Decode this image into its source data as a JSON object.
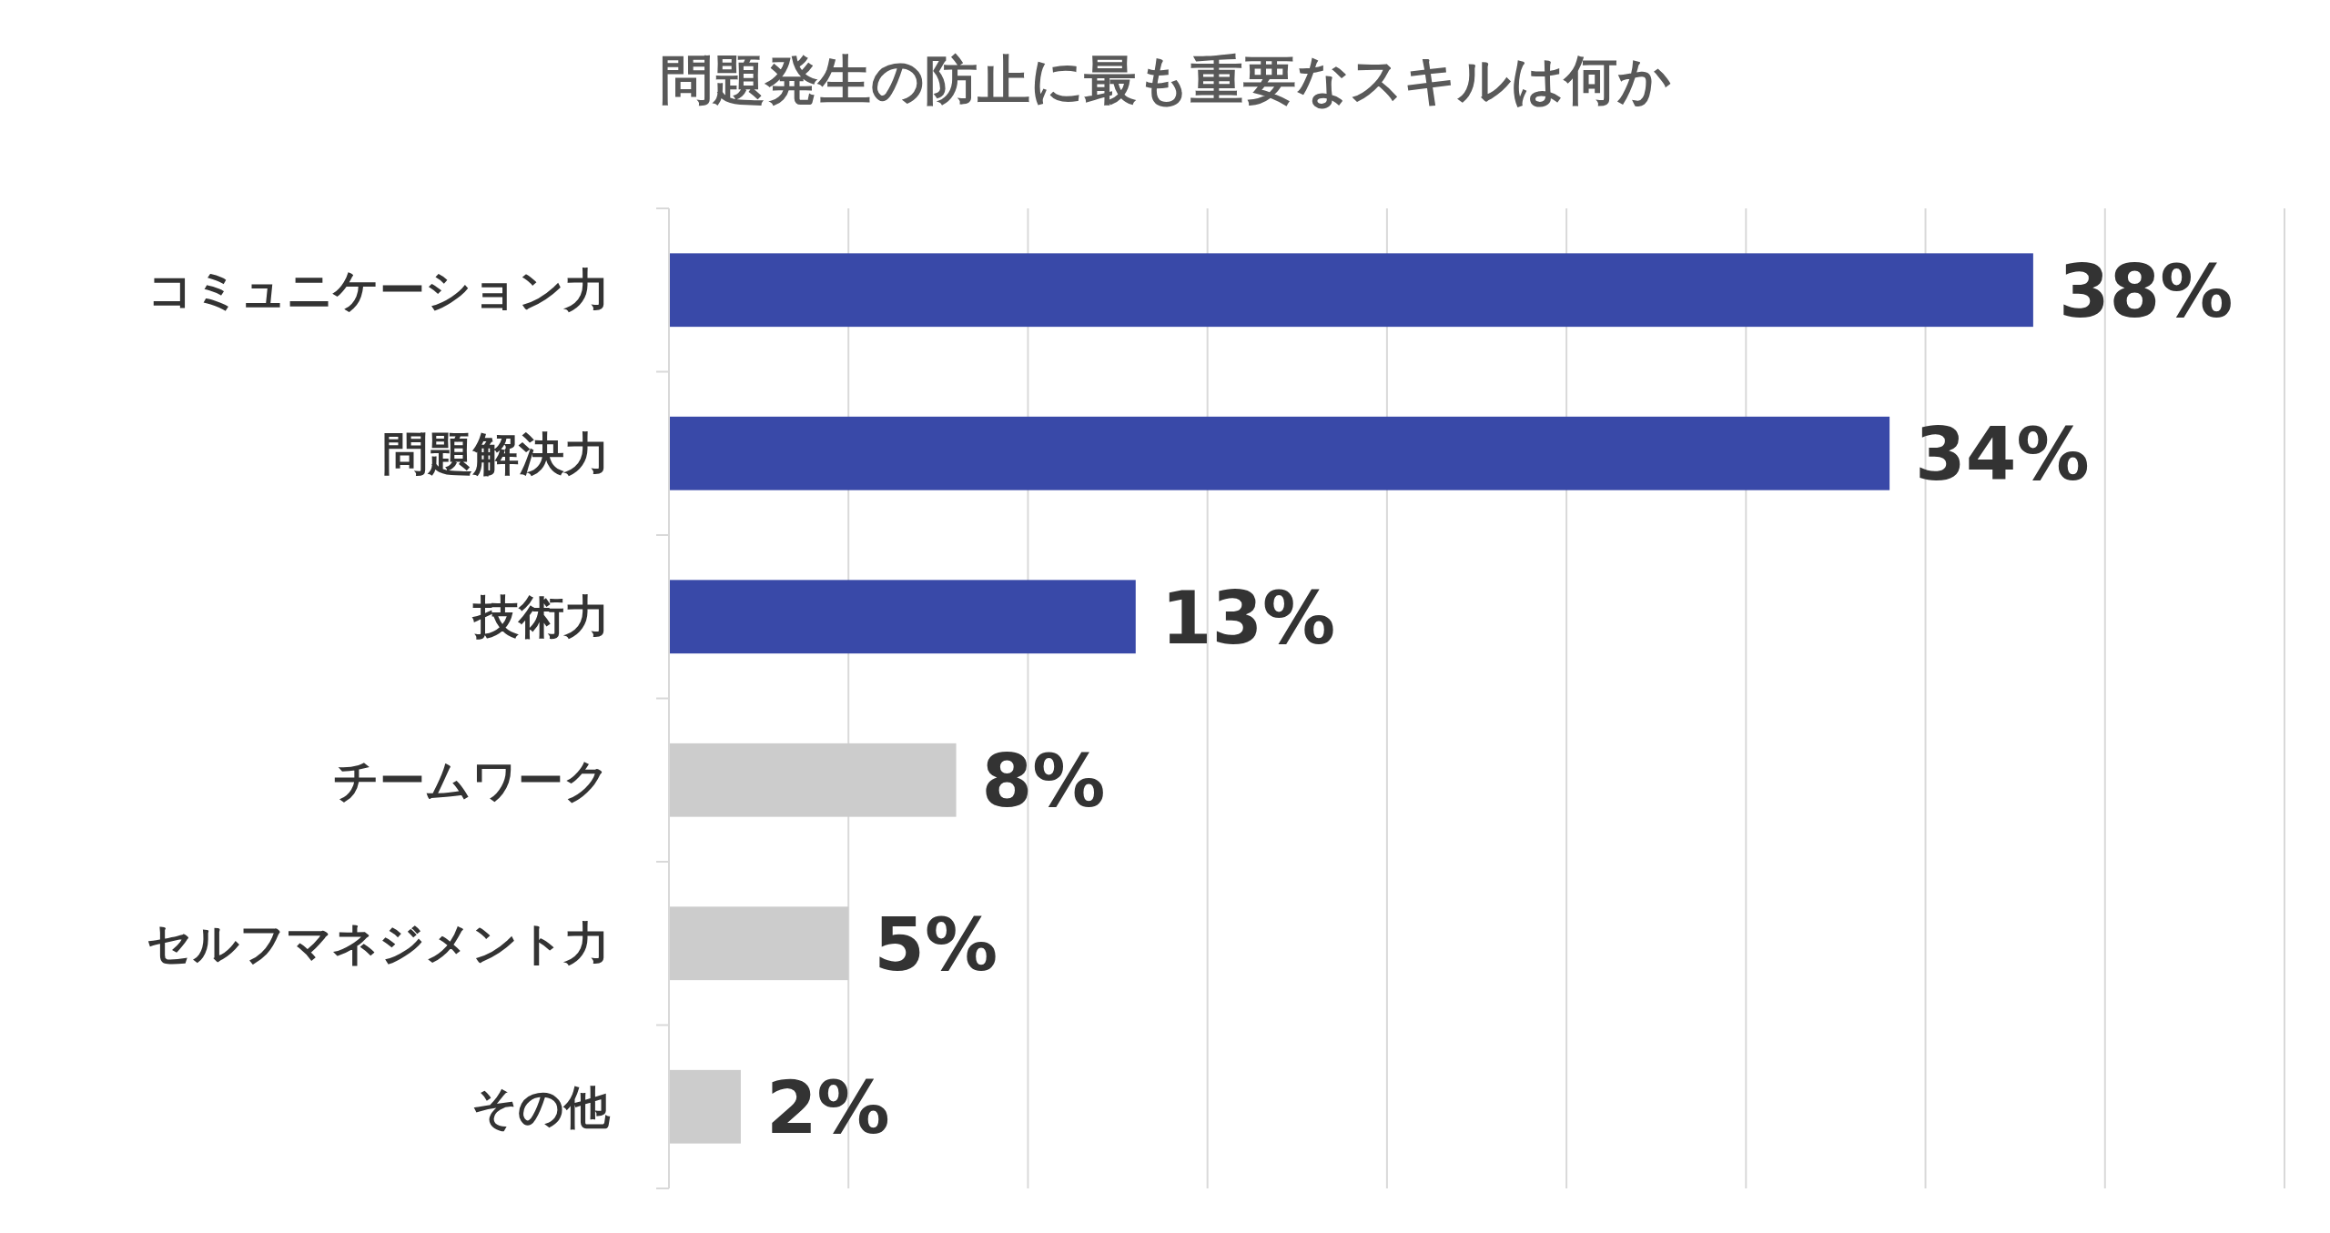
{
  "chart_data": {
    "type": "bar",
    "orientation": "horizontal",
    "title": "問題発生の防止に最も重要なスキルは何か",
    "categories": [
      "コミュニケーション力",
      "問題解決力",
      "技術力",
      "チームワーク",
      "セルフマネジメント力",
      "その他"
    ],
    "values": [
      38,
      34,
      13,
      8,
      5,
      2
    ],
    "colors": [
      "#3949a8",
      "#3949a8",
      "#3949a8",
      "#cccccc",
      "#cccccc",
      "#cccccc"
    ],
    "value_labels": [
      "38%",
      "34%",
      "13%",
      "8%",
      "5%",
      "2%"
    ],
    "xlim": [
      0,
      45
    ],
    "xticks": [
      {
        "value": 0,
        "label": null
      },
      {
        "value": 5,
        "label": null
      },
      {
        "value": 10,
        "label": null
      },
      {
        "value": 15,
        "label": null
      },
      {
        "value": 20,
        "label": null
      },
      {
        "value": 25,
        "label": null
      },
      {
        "value": 30,
        "label": null
      },
      {
        "value": 35,
        "label": null
      },
      {
        "value": 40,
        "label": null
      },
      {
        "value": 45,
        "label": null
      }
    ],
    "grid": "x",
    "tick_labels": "y"
  }
}
